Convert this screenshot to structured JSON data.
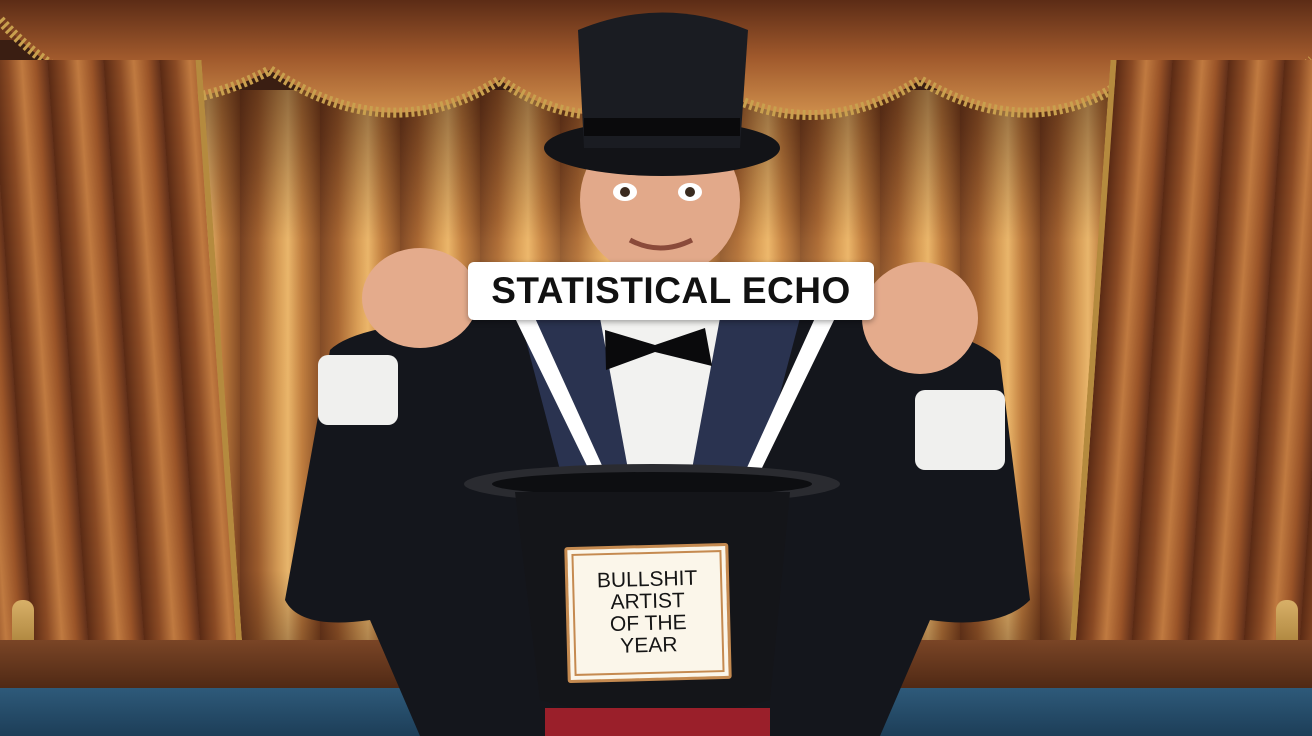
{
  "scene": {
    "label_text": "STATISTICAL ECHO",
    "sign_lines": [
      "BULLSHIT",
      "ARTIST",
      "OF THE",
      "YEAR"
    ]
  },
  "colors": {
    "curtain_gold": "#d39a55",
    "curtain_dark": "#6e3a1e",
    "tuxedo": "#14161c",
    "lapel": "#2a3350",
    "shirt": "#f2f2f0",
    "skin": "#e2a98a",
    "stage_floor": "#2e5a7a",
    "sash_red": "#9a1f2a"
  }
}
